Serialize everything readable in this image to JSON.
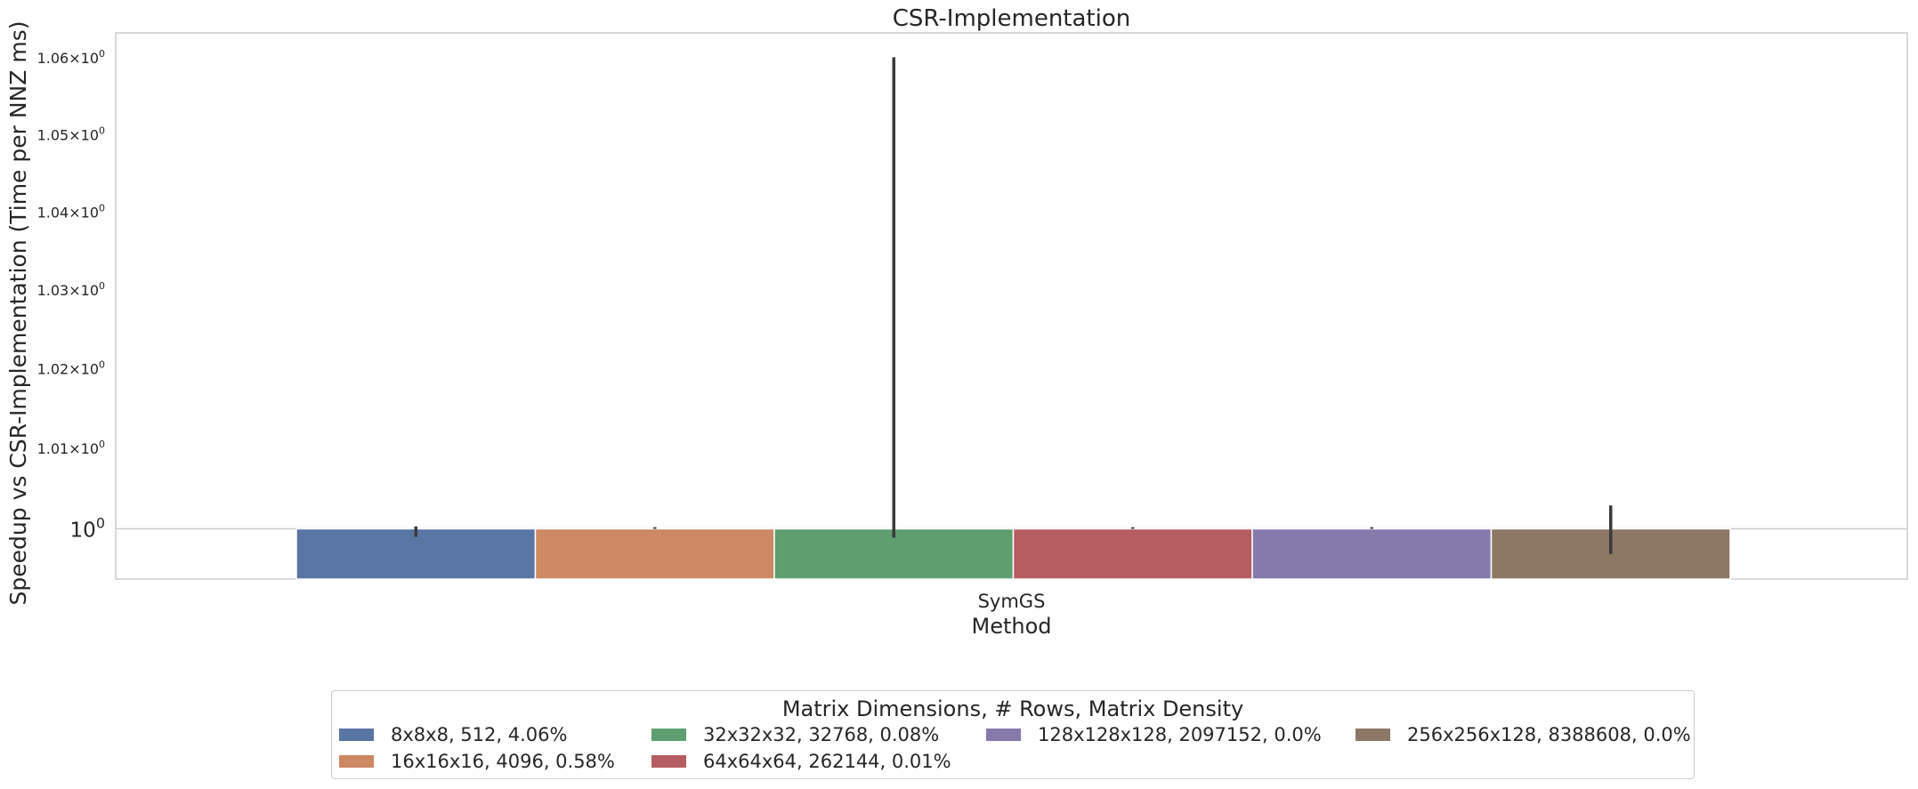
{
  "chart_data": {
    "type": "bar",
    "title": "CSR-Implementation",
    "xlabel": "Method",
    "ylabel": "Speedup vs CSR-Implementation (Time per NNZ ms)",
    "y_scale": "log",
    "ylim": [
      0.9938,
      1.0633
    ],
    "yticks": [
      {
        "value": 1.0,
        "label": "10",
        "exp": "0"
      },
      {
        "value": 1.01,
        "label": "1.01×10",
        "exp": "0"
      },
      {
        "value": 1.02,
        "label": "1.02×10",
        "exp": "0"
      },
      {
        "value": 1.03,
        "label": "1.03×10",
        "exp": "0"
      },
      {
        "value": 1.04,
        "label": "1.04×10",
        "exp": "0"
      },
      {
        "value": 1.05,
        "label": "1.05×10",
        "exp": "0"
      },
      {
        "value": 1.06,
        "label": "1.06×10",
        "exp": "0"
      }
    ],
    "categories": [
      "SymGS"
    ],
    "grid": "horizontal",
    "legend_title": "Matrix Dimensions, # Rows, Matrix Density",
    "legend_position": "below",
    "series": [
      {
        "name": "8x8x8, 512, 4.06%",
        "color": "#5975a4",
        "values": [
          1.0
        ],
        "err_low": [
          0.999
        ],
        "err_high": [
          1.0003
        ]
      },
      {
        "name": "16x16x16, 4096, 0.58%",
        "color": "#cc8963",
        "values": [
          1.0
        ],
        "err_low": [
          1.0
        ],
        "err_high": [
          1.0002
        ]
      },
      {
        "name": "32x32x32, 32768, 0.08%",
        "color": "#5f9e6e",
        "values": [
          1.0
        ],
        "err_low": [
          0.9989
        ],
        "err_high": [
          1.0601
        ]
      },
      {
        "name": "64x64x64, 262144, 0.01%",
        "color": "#b55d60",
        "values": [
          1.0
        ],
        "err_low": [
          1.0
        ],
        "err_high": [
          1.0002
        ]
      },
      {
        "name": "128x128x128, 2097152, 0.0%",
        "color": "#857aab",
        "values": [
          1.0
        ],
        "err_low": [
          1.0
        ],
        "err_high": [
          1.0002
        ]
      },
      {
        "name": "256x256x128, 8388608, 0.0%",
        "color": "#8d7866",
        "values": [
          1.0
        ],
        "err_low": [
          0.9969
        ],
        "err_high": [
          1.0029
        ]
      }
    ]
  }
}
